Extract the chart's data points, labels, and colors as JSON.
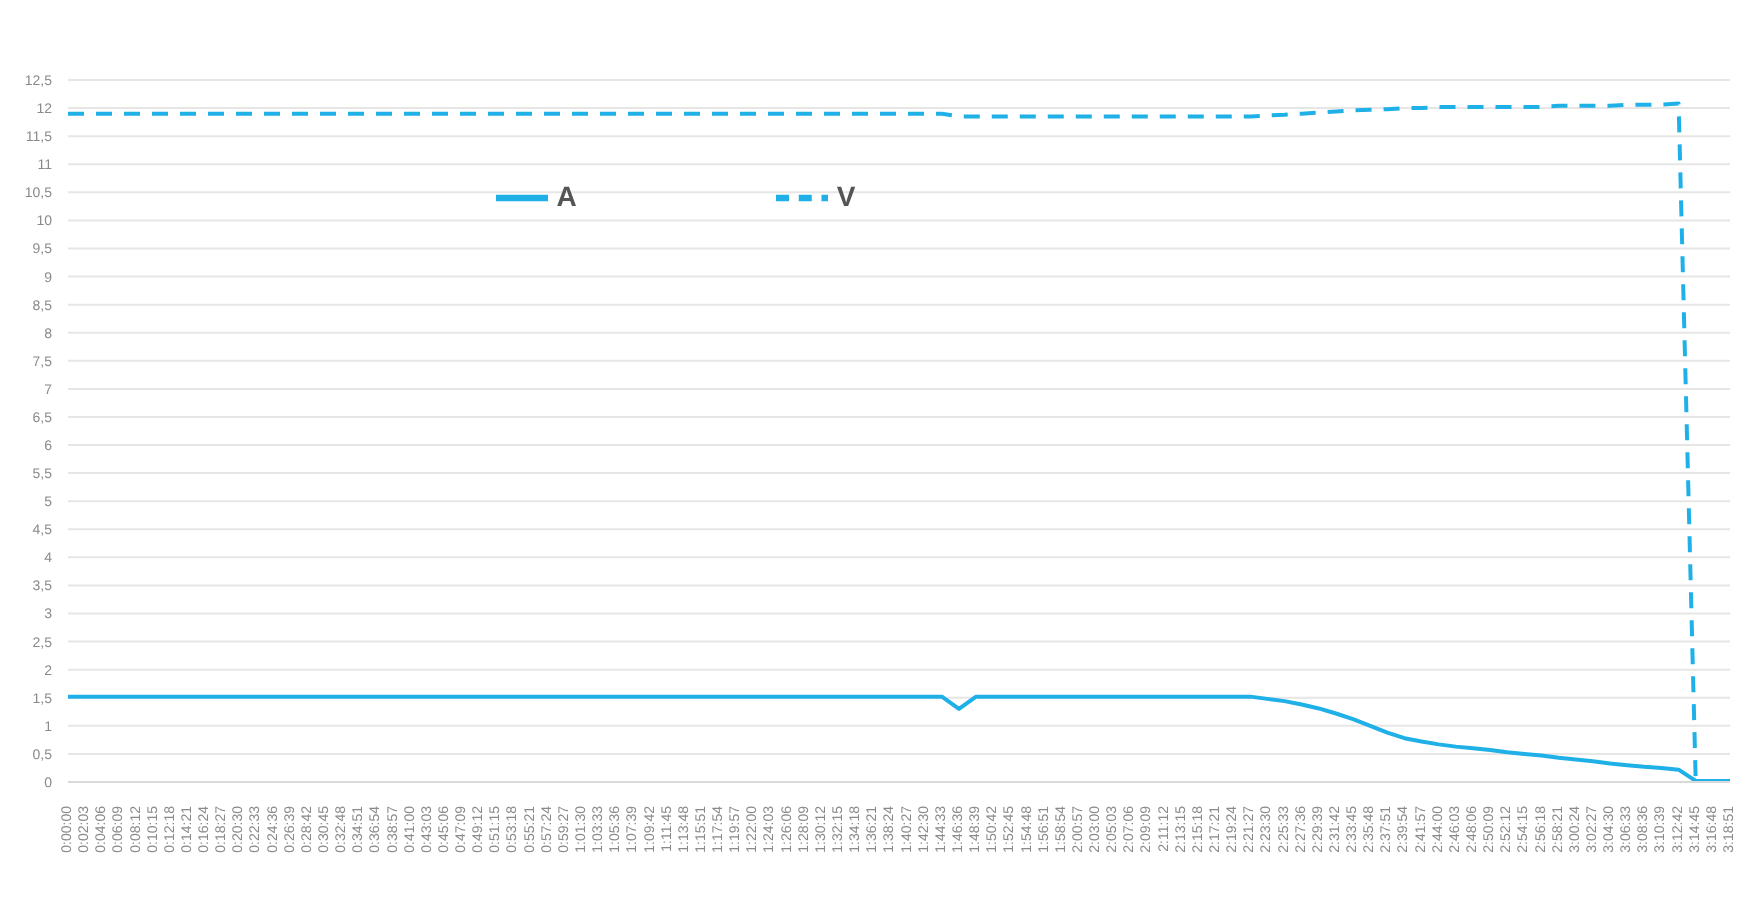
{
  "chart_data": {
    "type": "line",
    "categories": [
      "0:00:00",
      "0:02:03",
      "0:04:06",
      "0:06:09",
      "0:08:12",
      "0:10:15",
      "0:12:18",
      "0:14:21",
      "0:16:24",
      "0:18:27",
      "0:20:30",
      "0:22:33",
      "0:24:36",
      "0:26:39",
      "0:28:42",
      "0:30:45",
      "0:32:48",
      "0:34:51",
      "0:36:54",
      "0:38:57",
      "0:41:00",
      "0:43:03",
      "0:45:06",
      "0:47:09",
      "0:49:12",
      "0:51:15",
      "0:53:18",
      "0:55:21",
      "0:57:24",
      "0:59:27",
      "1:01:30",
      "1:03:33",
      "1:05:36",
      "1:07:39",
      "1:09:42",
      "1:11:45",
      "1:13:48",
      "1:15:51",
      "1:17:54",
      "1:19:57",
      "1:22:00",
      "1:24:03",
      "1:26:06",
      "1:28:09",
      "1:30:12",
      "1:32:15",
      "1:34:18",
      "1:36:21",
      "1:38:24",
      "1:40:27",
      "1:42:30",
      "1:44:33",
      "1:46:36",
      "1:48:39",
      "1:50:42",
      "1:52:45",
      "1:54:48",
      "1:56:51",
      "1:58:54",
      "2:00:57",
      "2:03:00",
      "2:05:03",
      "2:07:06",
      "2:09:09",
      "2:11:12",
      "2:13:15",
      "2:15:18",
      "2:17:21",
      "2:19:24",
      "2:21:27",
      "2:23:30",
      "2:25:33",
      "2:27:36",
      "2:29:39",
      "2:31:42",
      "2:33:45",
      "2:35:48",
      "2:37:51",
      "2:39:54",
      "2:41:57",
      "2:44:00",
      "2:46:03",
      "2:48:06",
      "2:50:09",
      "2:52:12",
      "2:54:15",
      "2:56:18",
      "2:58:21",
      "3:00:24",
      "3:02:27",
      "3:04:30",
      "3:06:33",
      "3:08:36",
      "3:10:39",
      "3:12:42",
      "3:14:45",
      "3:16:48",
      "3:18:51"
    ],
    "series": [
      {
        "name": "V",
        "color": "#1fb0e8",
        "line_style": "dashed",
        "values": [
          11.9,
          11.9,
          11.9,
          11.9,
          11.9,
          11.9,
          11.9,
          11.9,
          11.9,
          11.9,
          11.9,
          11.9,
          11.9,
          11.9,
          11.9,
          11.9,
          11.9,
          11.9,
          11.9,
          11.9,
          11.9,
          11.9,
          11.9,
          11.9,
          11.9,
          11.9,
          11.9,
          11.9,
          11.9,
          11.9,
          11.9,
          11.9,
          11.9,
          11.9,
          11.9,
          11.9,
          11.9,
          11.9,
          11.9,
          11.9,
          11.9,
          11.9,
          11.9,
          11.9,
          11.9,
          11.9,
          11.9,
          11.9,
          11.9,
          11.9,
          11.9,
          11.9,
          11.85,
          11.85,
          11.85,
          11.85,
          11.85,
          11.85,
          11.85,
          11.85,
          11.85,
          11.85,
          11.85,
          11.85,
          11.85,
          11.85,
          11.85,
          11.85,
          11.85,
          11.85,
          11.87,
          11.88,
          11.9,
          11.92,
          11.94,
          11.96,
          11.97,
          11.98,
          12.0,
          12.0,
          12.02,
          12.02,
          12.02,
          12.02,
          12.02,
          12.02,
          12.02,
          12.04,
          12.04,
          12.04,
          12.04,
          12.06,
          12.06,
          12.06,
          12.08,
          0,
          0,
          0
        ]
      },
      {
        "name": "A",
        "color": "#1fb0e8",
        "line_style": "solid",
        "values": [
          1.52,
          1.52,
          1.52,
          1.52,
          1.52,
          1.52,
          1.52,
          1.52,
          1.52,
          1.52,
          1.52,
          1.52,
          1.52,
          1.52,
          1.52,
          1.52,
          1.52,
          1.52,
          1.52,
          1.52,
          1.52,
          1.52,
          1.52,
          1.52,
          1.52,
          1.52,
          1.52,
          1.52,
          1.52,
          1.52,
          1.52,
          1.52,
          1.52,
          1.52,
          1.52,
          1.52,
          1.52,
          1.52,
          1.52,
          1.52,
          1.52,
          1.52,
          1.52,
          1.52,
          1.52,
          1.52,
          1.52,
          1.52,
          1.52,
          1.52,
          1.52,
          1.52,
          1.3,
          1.52,
          1.52,
          1.52,
          1.52,
          1.52,
          1.52,
          1.52,
          1.52,
          1.52,
          1.52,
          1.52,
          1.52,
          1.52,
          1.52,
          1.52,
          1.52,
          1.52,
          1.48,
          1.44,
          1.38,
          1.31,
          1.22,
          1.12,
          1.0,
          0.88,
          0.78,
          0.72,
          0.67,
          0.63,
          0.6,
          0.57,
          0.53,
          0.5,
          0.47,
          0.43,
          0.4,
          0.37,
          0.33,
          0.3,
          0.27,
          0.25,
          0.22,
          0.02,
          0.02,
          0.02
        ]
      }
    ],
    "ylim": [
      0,
      12.5
    ],
    "yticks": [
      0,
      {
        "value": 0.5,
        "label": "0,5"
      },
      1,
      {
        "value": 1.5,
        "label": "1,5"
      },
      2,
      {
        "value": 2.5,
        "label": "2,5"
      },
      3,
      {
        "value": 3.5,
        "label": "3,5"
      },
      4,
      {
        "value": 4.5,
        "label": "4,5"
      },
      5,
      {
        "value": 5.5,
        "label": "5,5"
      },
      6,
      {
        "value": 6.5,
        "label": "6,5"
      },
      7,
      {
        "value": 7.5,
        "label": "7,5"
      },
      8,
      {
        "value": 8.5,
        "label": "8,5"
      },
      9,
      {
        "value": 9.5,
        "label": "9,5"
      },
      10,
      {
        "value": 10.5,
        "label": "10,5"
      },
      11,
      {
        "value": 11.5,
        "label": "11,5"
      },
      12,
      {
        "value": 12.5,
        "label": "12,5"
      }
    ],
    "grid": "y",
    "legend": "top",
    "marker": "none"
  }
}
